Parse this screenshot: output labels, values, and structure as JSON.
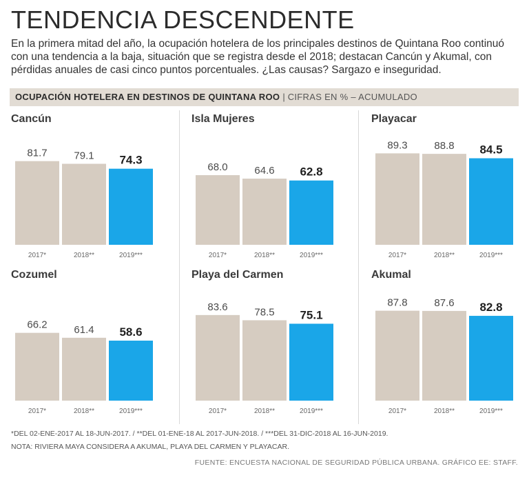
{
  "header": {
    "title": "TENDENCIA DESCENDENTE",
    "intro": "En la primera mitad del año, la ocupación hotelera de los principales destinos de Quintana Roo continuó con una tendencia a la baja, situación que se registra desde el 2018; destacan Cancún y Akumal, con pérdidas anuales de casi cinco puntos porcentuales. ¿Las causas? Sargazo e inseguridad."
  },
  "band": {
    "title": "OCUPACIÓN HOTELERA EN DESTINOS DE QUINTANA ROO",
    "separator": "|",
    "subtitle": "CIFRAS EN % – ACUMULADO"
  },
  "colors": {
    "bar_past": "#d6ccc1",
    "bar_current": "#1aa6e8",
    "band": "#e2dcd4"
  },
  "chart_data": [
    {
      "type": "bar",
      "title": "Cancún",
      "categories": [
        "2017*",
        "2018**",
        "2019***"
      ],
      "values": [
        81.7,
        79.1,
        74.3
      ],
      "labels": [
        "81.7",
        "79.1",
        "74.3"
      ]
    },
    {
      "type": "bar",
      "title": "Isla Mujeres",
      "categories": [
        "2017*",
        "2018**",
        "2019***"
      ],
      "values": [
        68.0,
        64.6,
        62.8
      ],
      "labels": [
        "68.0",
        "64.6",
        "62.8"
      ]
    },
    {
      "type": "bar",
      "title": "Playacar",
      "categories": [
        "2017*",
        "2018**",
        "2019***"
      ],
      "values": [
        89.3,
        88.8,
        84.5
      ],
      "labels": [
        "89.3",
        "88.8",
        "84.5"
      ]
    },
    {
      "type": "bar",
      "title": "Cozumel",
      "categories": [
        "2017*",
        "2018**",
        "2019***"
      ],
      "values": [
        66.2,
        61.4,
        58.6
      ],
      "labels": [
        "66.2",
        "61.4",
        "58.6"
      ]
    },
    {
      "type": "bar",
      "title": "Playa del Carmen",
      "categories": [
        "2017*",
        "2018**",
        "2019***"
      ],
      "values": [
        83.6,
        78.5,
        75.1
      ],
      "labels": [
        "83.6",
        "78.5",
        "75.1"
      ]
    },
    {
      "type": "bar",
      "title": "Akumal",
      "categories": [
        "2017*",
        "2018**",
        "2019***"
      ],
      "values": [
        87.8,
        87.6,
        82.8
      ],
      "labels": [
        "87.8",
        "87.6",
        "82.8"
      ]
    }
  ],
  "footer": {
    "dates": "*DEL 02-ENE-2017 AL 18-JUN-2017. / **DEL 01-ENE-18 AL 2017-JUN-2018. / ***DEL 31-DIC-2018 AL 16-JUN-2019.",
    "note": "NOTA: RIVIERA MAYA CONSIDERA A AKUMAL, PLAYA DEL CARMEN Y PLAYACAR.",
    "source": "FUENTE: ENCUESTA NACIONAL DE SEGURIDAD PÚBLICA URBANA. GRÁFICO EE: STAFF."
  }
}
